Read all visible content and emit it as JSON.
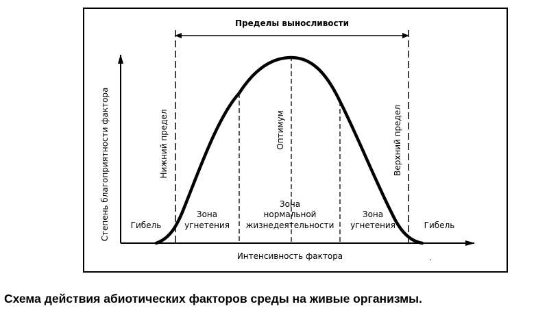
{
  "tolerance_limits": "Пределы выносливости",
  "y_axis": "Степень благоприятности фактора",
  "x_axis": "Интенсивность фактора",
  "lower_limit": "Нижний предел",
  "upper_limit": "Верхний предел",
  "optimum": "Оптимум",
  "death_left": "Гибель",
  "death_right": "Гибель",
  "stress_left": [
    "Зона",
    "угнетения"
  ],
  "normal": [
    "Зона",
    "нормальной",
    "жизнедеятельности"
  ],
  "stress_right": [
    "Зона",
    "угнетения"
  ],
  "caption": "Схема действия абиотических факторов среды на живые организмы."
}
